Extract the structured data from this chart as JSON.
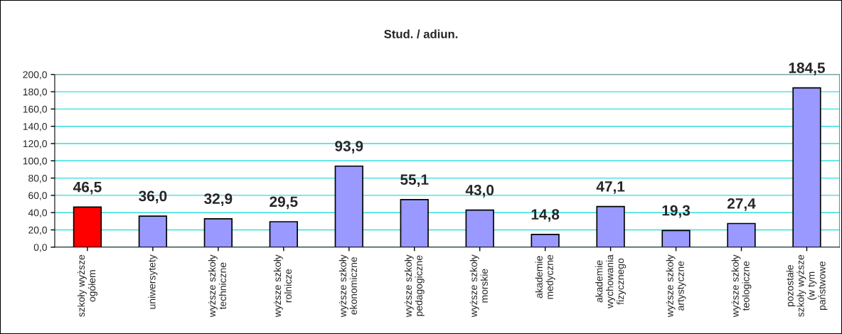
{
  "chart_data": {
    "type": "bar",
    "title": "Stud. / adiun.",
    "categories": [
      "szkoły wyższe\nogółem",
      "uniwersytety",
      "wyższe szkoły\ntechniczne",
      "wyższe szkoły\nrolnicze",
      "wyższe szkoły\nekonomiczne",
      "wyższe szkoły\npedagogiczne",
      "wyższe szkoły\nmorskie",
      "akademie\nmedyczne",
      "akademie\nwychowania\nfizycznego",
      "wyższe szkoły\nartystyczne",
      "wyższe szkoły\nteologiczne",
      "pozostałe\nszkoły wyższe\n(w tym\npaństwowe"
    ],
    "values": [
      46.5,
      36.0,
      32.9,
      29.5,
      93.9,
      55.1,
      43.0,
      14.8,
      47.1,
      19.3,
      27.4,
      184.5
    ],
    "value_labels": [
      "46,5",
      "36,0",
      "32,9",
      "29,5",
      "93,9",
      "55,1",
      "43,0",
      "14,8",
      "47,1",
      "19,3",
      "27,4",
      "184,5"
    ],
    "colors": [
      "#ff0000",
      "#9999ff",
      "#9999ff",
      "#9999ff",
      "#9999ff",
      "#9999ff",
      "#9999ff",
      "#9999ff",
      "#9999ff",
      "#9999ff",
      "#9999ff",
      "#9999ff"
    ],
    "ylim": [
      0,
      200
    ],
    "yticks": [
      {
        "value": 0,
        "label": "0,0"
      },
      {
        "value": 20,
        "label": "20,0"
      },
      {
        "value": 40,
        "label": "40,0"
      },
      {
        "value": 60,
        "label": "60,0"
      },
      {
        "value": 80,
        "label": "80,0"
      },
      {
        "value": 100,
        "label": "100,0"
      },
      {
        "value": 120,
        "label": "120,0"
      },
      {
        "value": 140,
        "label": "140,0"
      },
      {
        "value": 160,
        "label": "160,0"
      },
      {
        "value": 180,
        "label": "180,0"
      },
      {
        "value": 200,
        "label": "200,0"
      }
    ],
    "grid": "y",
    "legend": false
  }
}
